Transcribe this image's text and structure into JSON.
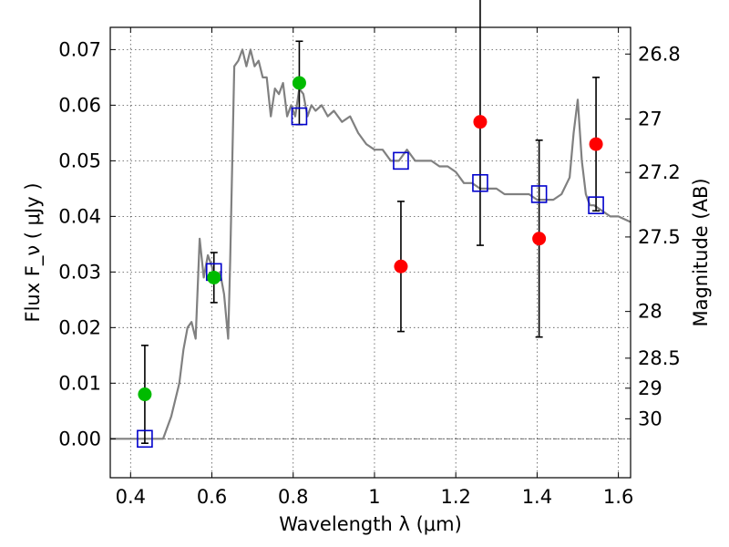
{
  "chart_data": {
    "type": "scatter",
    "xlabel": "Wavelength  λ (μm)",
    "ylabel": "Flux  F_ν  ( μJy )",
    "y2label": "Magnitude (AB)",
    "xlim": [
      0.35,
      1.63
    ],
    "ylim": [
      -0.007,
      0.074
    ],
    "x_ticks": [
      {
        "value": 0.4,
        "label": "0.4"
      },
      {
        "value": 0.6,
        "label": "0.6"
      },
      {
        "value": 0.8,
        "label": "0.8"
      },
      {
        "value": 1.0,
        "label": "1"
      },
      {
        "value": 1.2,
        "label": "1.2"
      },
      {
        "value": 1.4,
        "label": "1.4"
      },
      {
        "value": 1.6,
        "label": "1.6"
      }
    ],
    "y_ticks": [
      {
        "value": 0.0,
        "label": "0.00"
      },
      {
        "value": 0.01,
        "label": "0.01"
      },
      {
        "value": 0.02,
        "label": "0.02"
      },
      {
        "value": 0.03,
        "label": "0.03"
      },
      {
        "value": 0.04,
        "label": "0.04"
      },
      {
        "value": 0.05,
        "label": "0.05"
      },
      {
        "value": 0.06,
        "label": "0.06"
      },
      {
        "value": 0.07,
        "label": "0.07"
      }
    ],
    "mag_ticks": [
      {
        "label": "26.8",
        "flux": 0.0692
      },
      {
        "label": "27",
        "flux": 0.0575
      },
      {
        "label": "27.2",
        "flux": 0.0479
      },
      {
        "label": "27.5",
        "flux": 0.0363
      },
      {
        "label": "28",
        "flux": 0.0229
      },
      {
        "label": "28.5",
        "flux": 0.0145
      },
      {
        "label": "29",
        "flux": 0.0091
      },
      {
        "label": "30",
        "flux": 0.0036
      }
    ],
    "grid": true,
    "series": [
      {
        "kind": "line",
        "color": "#808080",
        "x": [
          0.35,
          0.48,
          0.5,
          0.52,
          0.53,
          0.54,
          0.55,
          0.56,
          0.57,
          0.58,
          0.59,
          0.6,
          0.61,
          0.62,
          0.63,
          0.64,
          0.645,
          0.655,
          0.665,
          0.675,
          0.685,
          0.695,
          0.705,
          0.715,
          0.725,
          0.735,
          0.745,
          0.755,
          0.765,
          0.775,
          0.785,
          0.795,
          0.805,
          0.815,
          0.825,
          0.835,
          0.845,
          0.855,
          0.87,
          0.885,
          0.9,
          0.92,
          0.94,
          0.96,
          0.98,
          1.0,
          1.02,
          1.04,
          1.06,
          1.08,
          1.1,
          1.12,
          1.14,
          1.16,
          1.18,
          1.2,
          1.22,
          1.24,
          1.26,
          1.28,
          1.3,
          1.32,
          1.34,
          1.36,
          1.38,
          1.4,
          1.42,
          1.44,
          1.46,
          1.48,
          1.49,
          1.5,
          1.51,
          1.52,
          1.53,
          1.54,
          1.56,
          1.58,
          1.6,
          1.63
        ],
        "y": [
          0.0,
          0.0,
          0.004,
          0.01,
          0.016,
          0.02,
          0.021,
          0.018,
          0.036,
          0.029,
          0.033,
          0.031,
          0.028,
          0.03,
          0.026,
          0.018,
          0.032,
          0.067,
          0.068,
          0.07,
          0.067,
          0.07,
          0.067,
          0.068,
          0.065,
          0.065,
          0.058,
          0.063,
          0.062,
          0.064,
          0.058,
          0.06,
          0.058,
          0.063,
          0.062,
          0.058,
          0.06,
          0.059,
          0.06,
          0.058,
          0.059,
          0.057,
          0.058,
          0.055,
          0.053,
          0.052,
          0.052,
          0.05,
          0.05,
          0.052,
          0.05,
          0.05,
          0.05,
          0.049,
          0.049,
          0.048,
          0.046,
          0.046,
          0.045,
          0.045,
          0.045,
          0.044,
          0.044,
          0.044,
          0.044,
          0.043,
          0.043,
          0.043,
          0.044,
          0.047,
          0.055,
          0.061,
          0.05,
          0.044,
          0.042,
          0.042,
          0.041,
          0.04,
          0.04,
          0.039
        ]
      },
      {
        "kind": "points",
        "marker": "square-open",
        "color": "#0000cc",
        "x": [
          0.435,
          0.605,
          0.815,
          1.065,
          1.26,
          1.405,
          1.545
        ],
        "y": [
          0.0,
          0.03,
          0.058,
          0.05,
          0.046,
          0.044,
          0.042
        ]
      },
      {
        "kind": "points",
        "marker": "circle",
        "color": "#00bb00",
        "x": [
          0.435,
          0.605,
          0.815
        ],
        "y": [
          0.008,
          0.029,
          0.064
        ],
        "err": [
          0.0088,
          0.0045,
          0.0075
        ]
      },
      {
        "kind": "points",
        "marker": "circle",
        "color": "#ff0000",
        "x": [
          1.065,
          1.26,
          1.405,
          1.545
        ],
        "y": [
          0.031,
          0.057,
          0.036,
          0.053
        ],
        "err": [
          0.0117,
          0.0222,
          0.0177,
          0.012
        ]
      }
    ]
  }
}
